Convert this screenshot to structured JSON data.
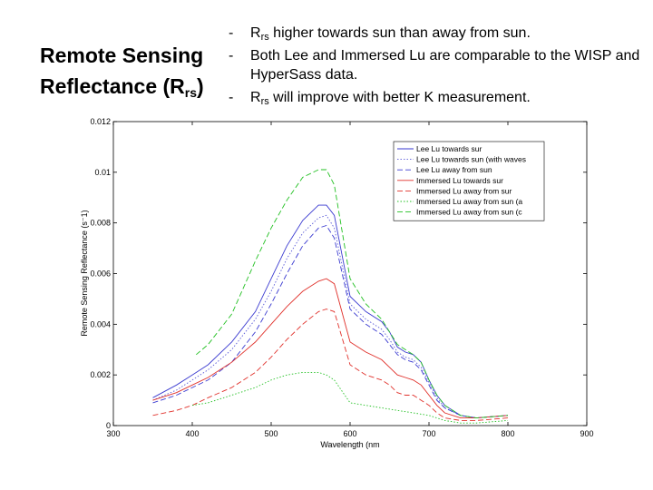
{
  "slide": {
    "title_main": "Remote Sensing Reflectance (R",
    "title_sub": "rs",
    "title_end": ")",
    "bullets": [
      {
        "dash": "-",
        "pre": "R",
        "sub": "rs",
        "post": " higher towards sun than away from sun."
      },
      {
        "dash": "-",
        "pre": "",
        "sub": "",
        "post": "Both Lee and Immersed Lu are comparable to the WISP and HyperSass data."
      },
      {
        "dash": "-",
        "pre": "R",
        "sub": "rs",
        "post": " will improve with better K measurement."
      }
    ]
  },
  "chart_data": {
    "type": "line",
    "title": "",
    "xlabel": "Wavelength (nm",
    "ylabel": "Remote Sensing Reflectance (s⁻1)",
    "xlim": [
      300,
      900
    ],
    "ylim": [
      0,
      0.012
    ],
    "xticks": [
      300,
      400,
      500,
      600,
      700,
      800,
      900
    ],
    "yticks": [
      0,
      0.002,
      0.004,
      0.006,
      0.008,
      0.01,
      0.012
    ],
    "ytick_labels": [
      "0",
      "0.002",
      "0.004",
      "0.006",
      "0.008",
      "0.01",
      "0.012"
    ],
    "grid": false,
    "legend_position": "top-right",
    "series": [
      {
        "name": "Lee Lu towards sur",
        "color": "#3a3ad0",
        "style": "solid",
        "x": [
          350,
          380,
          400,
          420,
          450,
          480,
          500,
          520,
          540,
          560,
          570,
          580,
          600,
          620,
          640,
          650,
          660,
          670,
          680,
          690,
          700,
          710,
          720,
          740,
          760,
          800
        ],
        "y": [
          0.0011,
          0.0016,
          0.002,
          0.0024,
          0.0033,
          0.0045,
          0.0058,
          0.0071,
          0.0081,
          0.0087,
          0.0087,
          0.0083,
          0.0051,
          0.0045,
          0.0041,
          0.0037,
          0.0031,
          0.0029,
          0.0028,
          0.0025,
          0.0018,
          0.0012,
          0.0008,
          0.0004,
          0.0003,
          0.0004
        ]
      },
      {
        "name": "Lee Lu towards sun (with waves",
        "color": "#5a5ad8",
        "style": "dotted",
        "x": [
          350,
          380,
          400,
          420,
          450,
          480,
          500,
          520,
          540,
          560,
          570,
          580,
          600,
          620,
          640,
          650,
          660,
          670,
          680,
          690,
          700,
          710,
          720,
          740,
          760,
          800
        ],
        "y": [
          0.001,
          0.0014,
          0.0018,
          0.0022,
          0.003,
          0.0042,
          0.0053,
          0.0066,
          0.0076,
          0.0082,
          0.0083,
          0.0078,
          0.0048,
          0.0042,
          0.0038,
          0.0034,
          0.0029,
          0.0027,
          0.0026,
          0.0023,
          0.0017,
          0.0011,
          0.0007,
          0.0004,
          0.0003,
          0.0004
        ]
      },
      {
        "name": "Lee Lu away from sun",
        "color": "#3a3ad0",
        "style": "dashed",
        "x": [
          350,
          380,
          400,
          420,
          450,
          480,
          500,
          520,
          540,
          560,
          570,
          580,
          600,
          620,
          640,
          650,
          660,
          670,
          680,
          690,
          700,
          710,
          720,
          740,
          760,
          800
        ],
        "y": [
          0.0009,
          0.0012,
          0.0015,
          0.0018,
          0.0025,
          0.0037,
          0.0048,
          0.006,
          0.0071,
          0.0078,
          0.0079,
          0.0074,
          0.0046,
          0.004,
          0.0036,
          0.0032,
          0.0028,
          0.0026,
          0.0025,
          0.0022,
          0.0016,
          0.001,
          0.0007,
          0.0004,
          0.0003,
          0.0004
        ]
      },
      {
        "name": "Immersed Lu towards sur",
        "color": "#e0302a",
        "style": "solid",
        "x": [
          350,
          380,
          400,
          420,
          450,
          480,
          500,
          520,
          540,
          560,
          570,
          580,
          600,
          620,
          640,
          650,
          660,
          670,
          680,
          690,
          700,
          710,
          720,
          740,
          760,
          800
        ],
        "y": [
          0.001,
          0.0013,
          0.0016,
          0.0019,
          0.0025,
          0.0033,
          0.004,
          0.0047,
          0.0053,
          0.0057,
          0.0058,
          0.0056,
          0.0033,
          0.0029,
          0.0026,
          0.0023,
          0.002,
          0.0019,
          0.0018,
          0.0016,
          0.0012,
          0.0008,
          0.0005,
          0.0003,
          0.0003,
          0.0004
        ]
      },
      {
        "name": "Immersed Lu away from sur",
        "color": "#e0302a",
        "style": "dashed",
        "x": [
          350,
          380,
          400,
          420,
          450,
          480,
          500,
          520,
          540,
          560,
          570,
          580,
          600,
          620,
          640,
          650,
          660,
          670,
          680,
          690,
          700,
          710,
          720,
          740,
          760,
          800
        ],
        "y": [
          0.0004,
          0.0006,
          0.0008,
          0.0011,
          0.0015,
          0.0021,
          0.0027,
          0.0034,
          0.004,
          0.0045,
          0.0046,
          0.0045,
          0.0024,
          0.002,
          0.0018,
          0.0016,
          0.0013,
          0.0012,
          0.0012,
          0.001,
          0.0008,
          0.0005,
          0.0003,
          0.0002,
          0.0002,
          0.0003
        ]
      },
      {
        "name": "Immersed Lu away from sun (a",
        "color": "#22c022",
        "style": "dotted",
        "x": [
          400,
          420,
          450,
          480,
          500,
          520,
          540,
          560,
          570,
          580,
          600,
          620,
          640,
          660,
          680,
          700,
          720,
          740,
          760,
          800
        ],
        "y": [
          0.0008,
          0.0009,
          0.0012,
          0.0015,
          0.0018,
          0.002,
          0.0021,
          0.0021,
          0.002,
          0.0018,
          0.0009,
          0.0008,
          0.0007,
          0.0006,
          0.0005,
          0.0004,
          0.0002,
          0.0001,
          0.0001,
          0.0002
        ]
      },
      {
        "name": "Immersed Lu away from sun (c",
        "color": "#22c022",
        "style": "dashed",
        "x": [
          405,
          420,
          450,
          480,
          500,
          520,
          540,
          560,
          570,
          580,
          600,
          620,
          640,
          650,
          660,
          670,
          680,
          690,
          700,
          710,
          720,
          740,
          760,
          800
        ],
        "y": [
          0.0028,
          0.0032,
          0.0044,
          0.0065,
          0.0078,
          0.0089,
          0.0098,
          0.0101,
          0.0101,
          0.0095,
          0.0058,
          0.0048,
          0.0042,
          0.0037,
          0.0032,
          0.003,
          0.0028,
          0.0025,
          0.0018,
          0.0012,
          0.0008,
          0.0004,
          0.0003,
          0.0004
        ]
      }
    ]
  }
}
